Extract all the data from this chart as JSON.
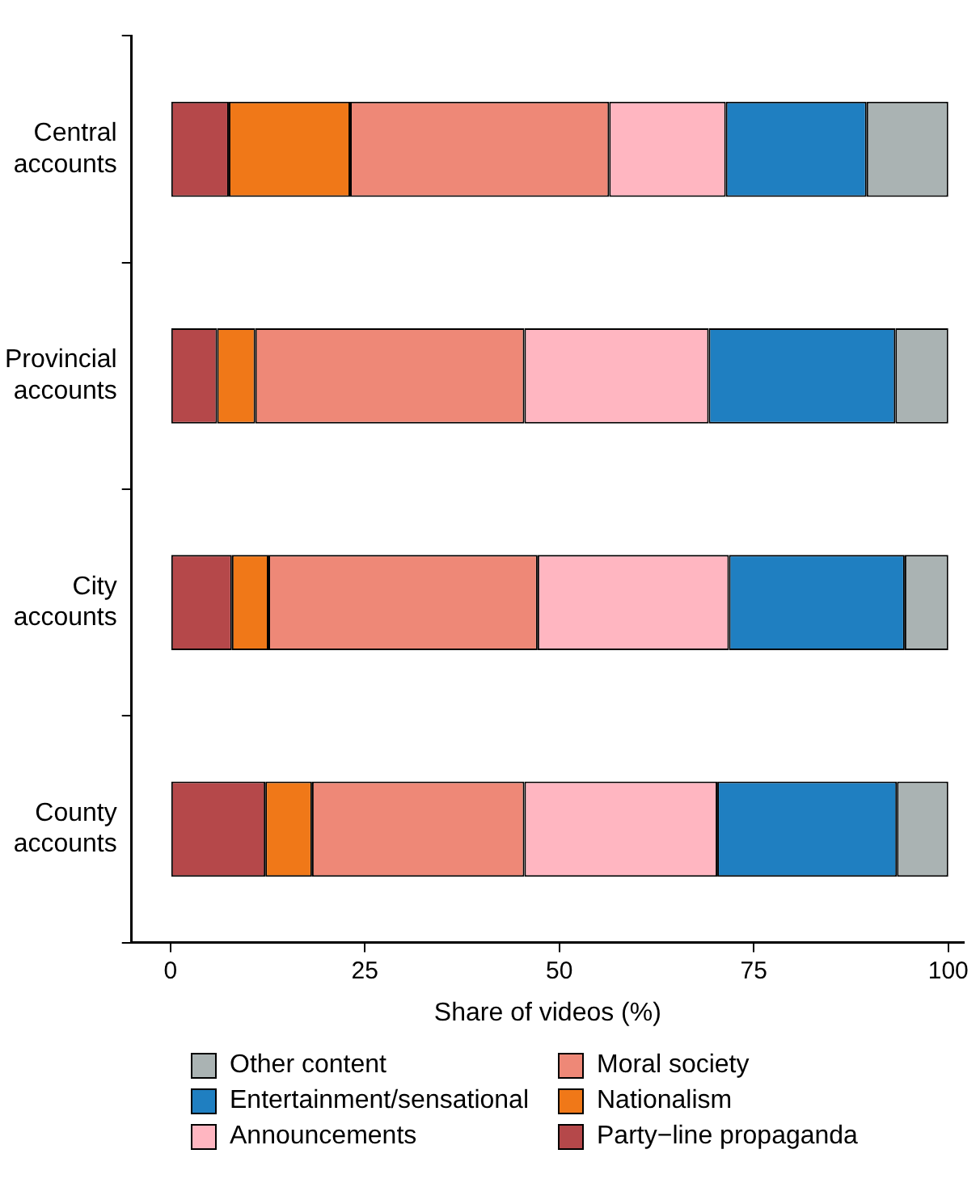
{
  "chart_data": {
    "type": "bar",
    "orientation": "horizontal",
    "stacked": true,
    "xlabel": "Share of videos (%)",
    "categories": [
      "Central accounts",
      "Provincial accounts",
      "City accounts",
      "County accounts"
    ],
    "series": [
      {
        "name": "Party−line propaganda",
        "color": "#b5484a",
        "values": [
          7.5,
          6.0,
          7.9,
          12.2
        ]
      },
      {
        "name": "Nationalism",
        "color": "#f07818",
        "values": [
          15.6,
          4.9,
          4.7,
          6.0
        ]
      },
      {
        "name": "Moral society",
        "color": "#ee8877",
        "values": [
          33.3,
          34.6,
          34.6,
          27.3
        ]
      },
      {
        "name": "Announcements",
        "color": "#ffb6c1",
        "values": [
          15.0,
          23.7,
          24.6,
          24.8
        ]
      },
      {
        "name": "Entertainment/sensational",
        "color": "#1f7fc1",
        "values": [
          18.1,
          24.0,
          22.6,
          23.1
        ]
      },
      {
        "name": "Other content",
        "color": "#aab3b3",
        "values": [
          10.5,
          6.8,
          5.6,
          6.6
        ]
      }
    ],
    "xlim": [
      -5,
      102
    ],
    "xticks": [
      0,
      25,
      50,
      75,
      100
    ],
    "grid": false,
    "legend": "bottom"
  }
}
